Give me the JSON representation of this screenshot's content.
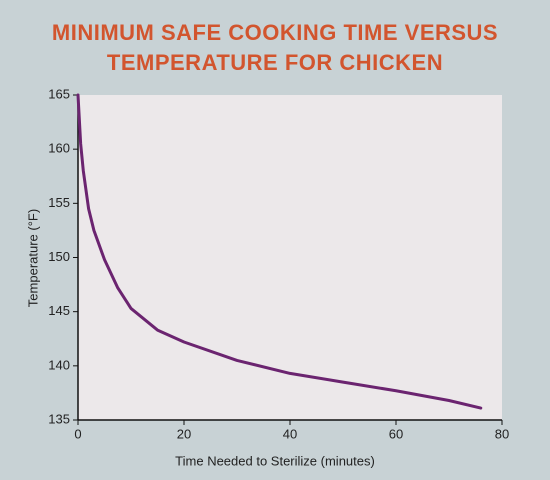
{
  "chart_data": {
    "type": "line",
    "title": "MINIMUM SAFE COOKING TIME VERSUS TEMPERATURE FOR CHICKEN",
    "xlabel": "Time Needed to Sterilize (minutes)",
    "ylabel": "Temperature (°F)",
    "xlim": [
      0,
      80
    ],
    "xticks": [
      0,
      20,
      40,
      60,
      80
    ],
    "ylim": [
      135,
      165
    ],
    "yticks": [
      135,
      140,
      145,
      150,
      155,
      160,
      165
    ],
    "grid": false,
    "x": [
      0,
      0.5,
      1,
      2,
      3,
      5,
      7.5,
      10,
      15,
      20,
      30,
      40,
      50,
      60,
      70,
      76
    ],
    "series": [
      {
        "color": "#6b2470",
        "values": [
          165,
          160.5,
          158,
          154.5,
          152.5,
          149.8,
          147.2,
          145.3,
          143.3,
          142.2,
          140.5,
          139.3,
          138.5,
          137.7,
          136.8,
          136.1
        ]
      }
    ]
  }
}
